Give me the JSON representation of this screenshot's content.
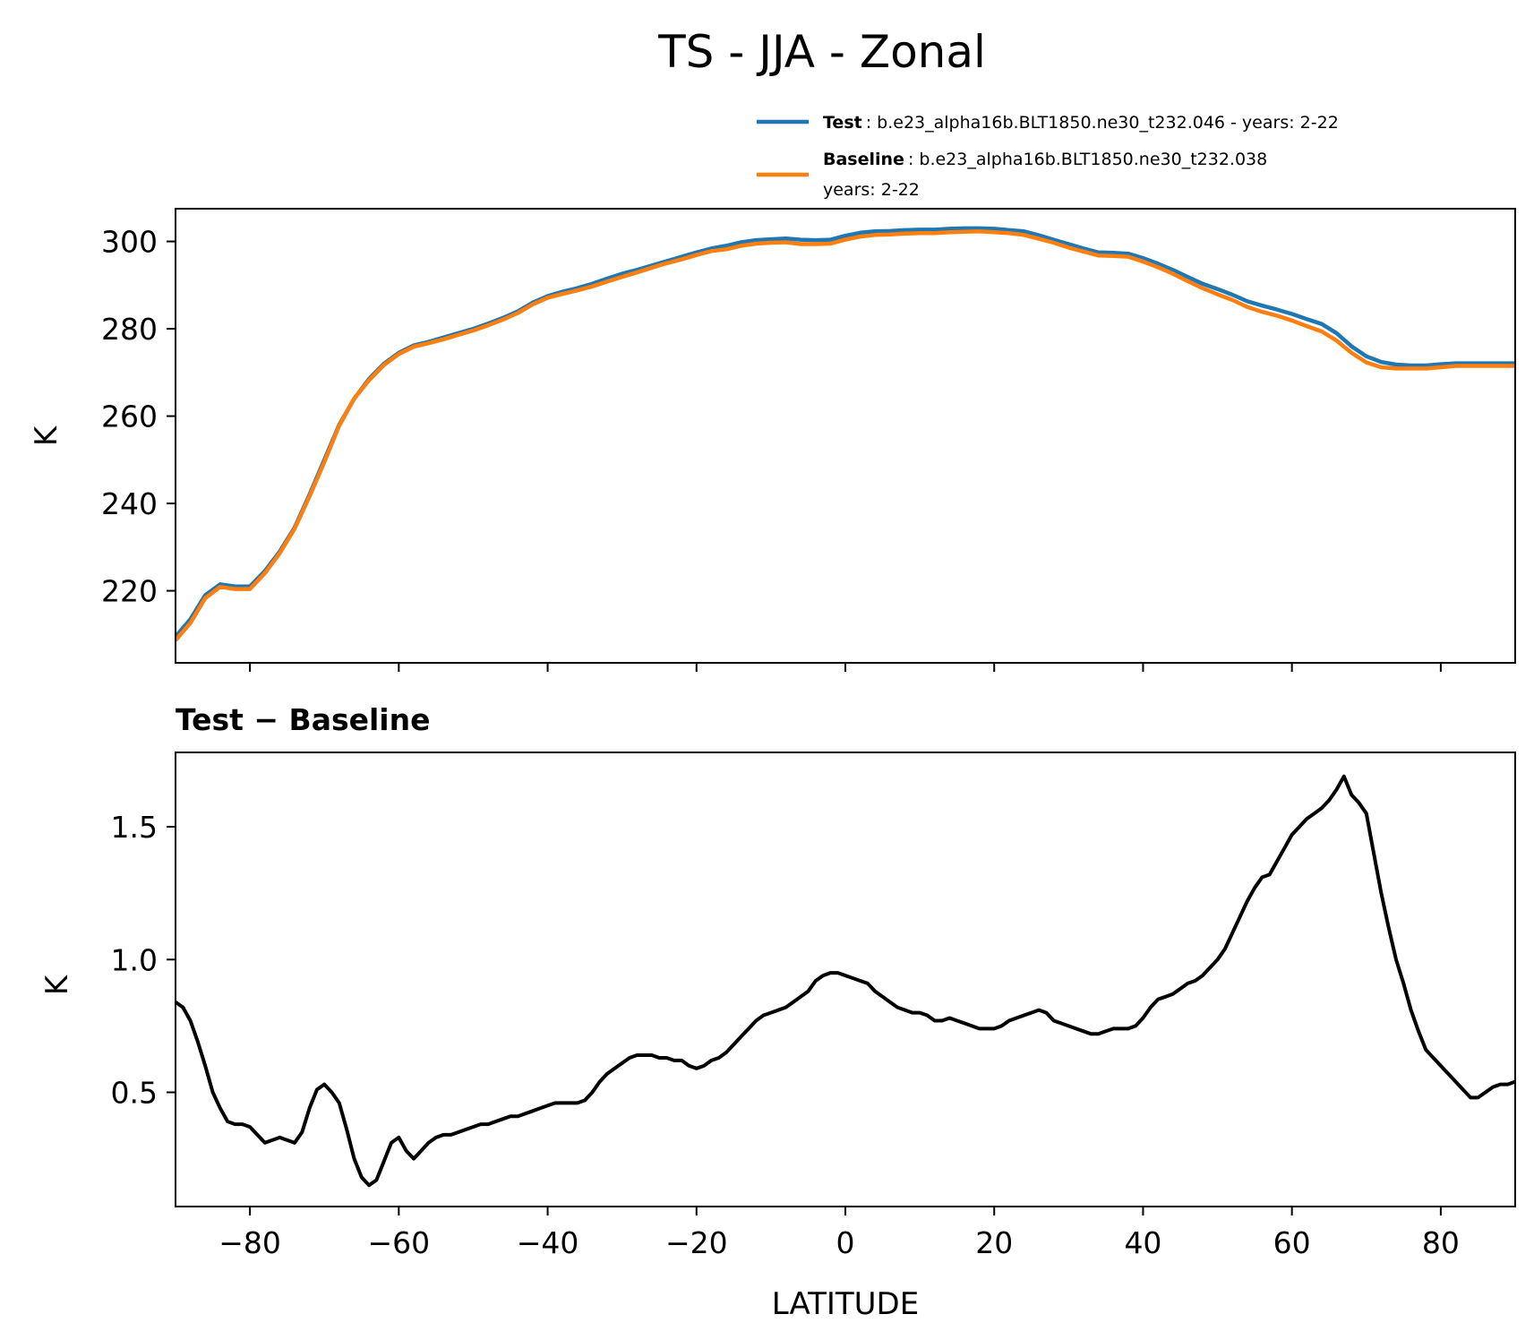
{
  "chart_data": [
    {
      "type": "line",
      "title": "TS - JJA - Zonal",
      "ylabel": "K",
      "xlim": [
        -90,
        90
      ],
      "ylim": [
        203.5,
        307.5
      ],
      "yticks": [
        220,
        240,
        260,
        280,
        300
      ],
      "xticks": [
        -80,
        -60,
        -40,
        -20,
        0,
        20,
        40,
        60,
        80
      ],
      "grid": false,
      "legend_position": "top-right",
      "legend": {
        "test_name": "Test",
        "test_text": ": b.e23_alpha16b.BLT1850.ne30_t232.046 - years: 2-22",
        "baseline_name": "Baseline",
        "baseline_text_1": ": b.e23_alpha16b.BLT1850.ne30_t232.038",
        "baseline_text_2": "years: 2-22"
      },
      "colors": {
        "test": "#1f77b4",
        "baseline": "#ff7f0e"
      },
      "x": [
        -90,
        -88,
        -86,
        -84,
        -82,
        -80,
        -78,
        -76,
        -74,
        -72,
        -70,
        -68,
        -66,
        -64,
        -62,
        -60,
        -58,
        -56,
        -54,
        -52,
        -50,
        -48,
        -46,
        -44,
        -42,
        -40,
        -38,
        -36,
        -34,
        -32,
        -30,
        -28,
        -26,
        -24,
        -22,
        -20,
        -18,
        -16,
        -14,
        -12,
        -10,
        -8,
        -6,
        -4,
        -2,
        0,
        2,
        4,
        6,
        8,
        10,
        12,
        14,
        16,
        18,
        20,
        22,
        24,
        26,
        28,
        30,
        32,
        34,
        36,
        38,
        40,
        42,
        44,
        46,
        48,
        50,
        52,
        54,
        56,
        58,
        60,
        62,
        64,
        66,
        68,
        70,
        72,
        74,
        76,
        78,
        80,
        82,
        84,
        86,
        88,
        90
      ],
      "series": [
        {
          "name": "Test",
          "values": [
            209.5,
            213.5,
            219,
            221.5,
            221,
            221,
            224.5,
            229,
            234.5,
            242,
            250,
            258,
            264,
            268.5,
            272,
            274.5,
            276.2,
            277,
            278,
            279,
            280,
            281.2,
            282.5,
            284,
            286,
            287.5,
            288.5,
            289.3,
            290.3,
            291.5,
            292.6,
            293.5,
            294.5,
            295.5,
            296.5,
            297.5,
            298.4,
            299,
            299.8,
            300.3,
            300.5,
            300.7,
            300.4,
            300.3,
            300.4,
            301.3,
            302,
            302.3,
            302.4,
            302.6,
            302.7,
            302.7,
            302.9,
            303,
            303,
            302.9,
            302.6,
            302.3,
            301.4,
            300.4,
            299.4,
            298.4,
            297.5,
            297.4,
            297.2,
            296.2,
            294.9,
            293.5,
            291.9,
            290.3,
            289.1,
            287.8,
            286.3,
            285.3,
            284.4,
            283.4,
            282.2,
            281.1,
            279,
            276,
            273.7,
            272.4,
            271.8,
            271.6,
            271.6,
            271.9,
            272.1,
            272.1,
            272.1,
            272.1,
            272.1
          ]
        },
        {
          "name": "Baseline",
          "values": [
            208.6,
            212.6,
            218.3,
            220.9,
            220.4,
            220.4,
            224,
            228.6,
            234.2,
            241.6,
            249.5,
            257.8,
            264,
            268.2,
            271.7,
            274.2,
            275.9,
            276.7,
            277.6,
            278.6,
            279.6,
            280.8,
            282.1,
            283.6,
            285.6,
            287.1,
            288,
            288.8,
            289.7,
            290.8,
            291.9,
            292.9,
            294,
            295,
            295.9,
            296.9,
            297.8,
            298.2,
            299,
            299.5,
            299.7,
            299.8,
            299.4,
            299.4,
            299.5,
            300.4,
            301.1,
            301.5,
            301.6,
            301.8,
            301.9,
            301.9,
            302.1,
            302.2,
            302.3,
            302.1,
            301.9,
            301.5,
            300.6,
            299.7,
            298.6,
            297.7,
            296.8,
            296.7,
            296.5,
            295.4,
            294.1,
            292.6,
            290.9,
            289.3,
            287.9,
            286.6,
            285,
            283.9,
            283,
            281.9,
            280.6,
            279.4,
            277.3,
            274.5,
            272.3,
            271.2,
            270.9,
            270.9,
            270.9,
            271.2,
            271.5,
            271.5,
            271.5,
            271.5,
            271.5
          ]
        }
      ]
    },
    {
      "type": "line",
      "title": "Test − Baseline",
      "xlabel": "LATITUDE",
      "ylabel": "K",
      "xlim": [
        -90,
        90
      ],
      "ylim": [
        0.07,
        1.78
      ],
      "yticks": [
        0.5,
        1.0,
        1.5
      ],
      "ytick_labels": [
        "0.5",
        "1.0",
        "1.5"
      ],
      "xticks": [
        -80,
        -60,
        -40,
        -20,
        0,
        20,
        40,
        60,
        80
      ],
      "xtick_labels": [
        "−80",
        "−60",
        "−40",
        "−20",
        "0",
        "20",
        "40",
        "60",
        "80"
      ],
      "grid": false,
      "colors": {
        "diff": "#000000"
      },
      "x": [
        -90,
        -89,
        -88,
        -87,
        -86,
        -85,
        -84,
        -83,
        -82,
        -81,
        -80,
        -79,
        -78,
        -77,
        -76,
        -75,
        -74,
        -73,
        -72,
        -71,
        -70,
        -69,
        -68,
        -67,
        -66,
        -65,
        -64,
        -63,
        -62,
        -61,
        -60,
        -59,
        -58,
        -57,
        -56,
        -55,
        -54,
        -53,
        -52,
        -51,
        -50,
        -49,
        -48,
        -47,
        -46,
        -45,
        -44,
        -43,
        -42,
        -41,
        -40,
        -39,
        -38,
        -37,
        -36,
        -35,
        -34,
        -33,
        -32,
        -31,
        -30,
        -29,
        -28,
        -27,
        -26,
        -25,
        -24,
        -23,
        -22,
        -21,
        -20,
        -19,
        -18,
        -17,
        -16,
        -15,
        -14,
        -13,
        -12,
        -11,
        -10,
        -9,
        -8,
        -7,
        -6,
        -5,
        -4,
        -3,
        -2,
        -1,
        0,
        1,
        2,
        3,
        4,
        5,
        6,
        7,
        8,
        9,
        10,
        11,
        12,
        13,
        14,
        15,
        16,
        17,
        18,
        19,
        20,
        21,
        22,
        23,
        24,
        25,
        26,
        27,
        28,
        29,
        30,
        31,
        32,
        33,
        34,
        35,
        36,
        37,
        38,
        39,
        40,
        41,
        42,
        43,
        44,
        45,
        46,
        47,
        48,
        49,
        50,
        51,
        52,
        53,
        54,
        55,
        56,
        57,
        58,
        59,
        60,
        61,
        62,
        63,
        64,
        65,
        66,
        67,
        68,
        69,
        70,
        71,
        72,
        73,
        74,
        75,
        76,
        77,
        78,
        79,
        80,
        81,
        82,
        83,
        84,
        85,
        86,
        87,
        88,
        89,
        90
      ],
      "values": [
        0.84,
        0.82,
        0.77,
        0.69,
        0.6,
        0.5,
        0.44,
        0.39,
        0.38,
        0.38,
        0.37,
        0.34,
        0.31,
        0.32,
        0.33,
        0.32,
        0.31,
        0.35,
        0.44,
        0.51,
        0.53,
        0.5,
        0.46,
        0.36,
        0.25,
        0.18,
        0.15,
        0.17,
        0.24,
        0.31,
        0.33,
        0.28,
        0.25,
        0.28,
        0.31,
        0.33,
        0.34,
        0.34,
        0.35,
        0.36,
        0.37,
        0.38,
        0.38,
        0.39,
        0.4,
        0.41,
        0.41,
        0.42,
        0.43,
        0.44,
        0.45,
        0.46,
        0.46,
        0.46,
        0.46,
        0.47,
        0.5,
        0.54,
        0.57,
        0.59,
        0.61,
        0.63,
        0.64,
        0.64,
        0.64,
        0.63,
        0.63,
        0.62,
        0.62,
        0.6,
        0.59,
        0.6,
        0.62,
        0.63,
        0.65,
        0.68,
        0.71,
        0.74,
        0.77,
        0.79,
        0.8,
        0.81,
        0.82,
        0.84,
        0.86,
        0.88,
        0.92,
        0.94,
        0.95,
        0.95,
        0.94,
        0.93,
        0.92,
        0.91,
        0.88,
        0.86,
        0.84,
        0.82,
        0.81,
        0.8,
        0.8,
        0.79,
        0.77,
        0.77,
        0.78,
        0.77,
        0.76,
        0.75,
        0.74,
        0.74,
        0.74,
        0.75,
        0.77,
        0.78,
        0.79,
        0.8,
        0.81,
        0.8,
        0.77,
        0.76,
        0.75,
        0.74,
        0.73,
        0.72,
        0.72,
        0.73,
        0.74,
        0.74,
        0.74,
        0.75,
        0.78,
        0.82,
        0.85,
        0.86,
        0.87,
        0.89,
        0.91,
        0.92,
        0.94,
        0.97,
        1.0,
        1.04,
        1.1,
        1.16,
        1.22,
        1.27,
        1.31,
        1.32,
        1.37,
        1.42,
        1.47,
        1.5,
        1.53,
        1.55,
        1.57,
        1.6,
        1.64,
        1.69,
        1.62,
        1.59,
        1.55,
        1.4,
        1.25,
        1.12,
        1.0,
        0.91,
        0.81,
        0.73,
        0.66,
        0.63,
        0.6,
        0.57,
        0.54,
        0.51,
        0.48,
        0.48,
        0.5,
        0.52,
        0.53,
        0.53,
        0.54
      ]
    }
  ]
}
